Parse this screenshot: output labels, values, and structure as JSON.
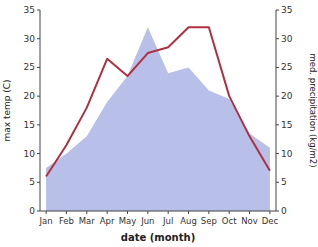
{
  "chart_data": {
    "type": "line",
    "categories": [
      "Jan",
      "Feb",
      "Mar",
      "Apr",
      "May",
      "Jun",
      "Jul",
      "Aug",
      "Sep",
      "Oct",
      "Nov",
      "Dec"
    ],
    "series": [
      {
        "type": "area",
        "axis": "y2",
        "color": "#b8bfe8",
        "values": [
          7.5,
          10.0,
          13.0,
          19.0,
          23.5,
          32.0,
          24.0,
          25.0,
          21.0,
          19.5,
          13.5,
          11.0
        ]
      },
      {
        "type": "line",
        "color": "#b03040",
        "values": [
          6.0,
          11.5,
          18.0,
          26.5,
          23.5,
          27.5,
          28.5,
          32.0,
          32.0,
          20.0,
          13.0,
          7.0
        ]
      }
    ],
    "xlabel": "date (month)",
    "ylabel": "max temp (C)",
    "y2label": "med. precipitation (kg/m2)",
    "ylim": [
      0,
      35
    ],
    "yticks": [
      0,
      5,
      10,
      15,
      20,
      25,
      30,
      35
    ],
    "y2lim": [
      0,
      35
    ],
    "y2ticks": [
      0,
      5,
      10,
      15,
      20,
      25,
      30,
      35
    ],
    "grid": false
  }
}
